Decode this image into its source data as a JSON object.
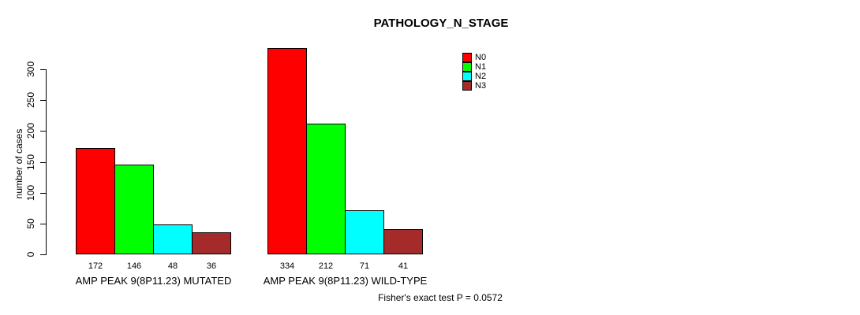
{
  "chart_data": {
    "type": "bar",
    "title": "PATHOLOGY_N_STAGE",
    "ylabel": "number of cases",
    "xlabel": "",
    "ylim": [
      0,
      300
    ],
    "yticks": [
      0,
      50,
      100,
      150,
      200,
      250,
      300
    ],
    "grid": false,
    "legend_position": "top-right",
    "categories": [
      "AMP PEAK 9(8P11.23) MUTATED",
      "AMP PEAK 9(8P11.23) WILD-TYPE"
    ],
    "series": [
      {
        "name": "N0",
        "color": "#ff0000",
        "values": [
          172,
          334
        ]
      },
      {
        "name": "N1",
        "color": "#00ff00",
        "values": [
          146,
          212
        ]
      },
      {
        "name": "N2",
        "color": "#00ffff",
        "values": [
          48,
          71
        ]
      },
      {
        "name": "N3",
        "color": "#a52a2a",
        "values": [
          36,
          41
        ]
      }
    ],
    "value_labels": [
      [
        172,
        146,
        48,
        36
      ],
      [
        334,
        212,
        71,
        41
      ]
    ],
    "footnote": "Fisher's exact test P = 0.0572"
  }
}
